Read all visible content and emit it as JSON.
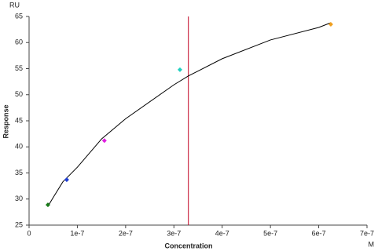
{
  "chart_data": {
    "type": "scatter",
    "x_label": "Concentration",
    "y_label": "Response",
    "x_unit": "M",
    "y_unit": "RU",
    "x": [
      3.9e-08,
      7.8e-08,
      1.56e-07,
      3.125e-07,
      6.25e-07
    ],
    "values": [
      28.9,
      33.7,
      41.2,
      54.8,
      63.5
    ],
    "colors": [
      "#1a7a1a",
      "#1f3fd6",
      "#e020e0",
      "#20d0c0",
      "#f0a020"
    ],
    "fit": {
      "color": "#000000",
      "x": [
        3.9e-08,
        5e-08,
        7e-08,
        1e-07,
        1.5e-07,
        2e-07,
        3e-07,
        3.3e-07,
        4e-07,
        5e-07,
        6e-07,
        6.25e-07
      ],
      "values": [
        28.6,
        30.3,
        33.3,
        36.1,
        41.5,
        45.4,
        51.9,
        53.6,
        56.9,
        60.5,
        62.9,
        63.8
      ]
    },
    "marker_line": {
      "x": 3.3e-07,
      "color": "#c00020"
    },
    "xlim": [
      0,
      7e-07
    ],
    "xticks": [
      0,
      {
        "value": 1e-07,
        "label": "1e-7"
      },
      {
        "value": 2e-07,
        "label": "2e-7"
      },
      {
        "value": 3e-07,
        "label": "3e-7"
      },
      {
        "value": 4e-07,
        "label": "4e-7"
      },
      {
        "value": 5e-07,
        "label": "5e-7"
      },
      {
        "value": 6e-07,
        "label": "6e-7"
      },
      {
        "value": 7e-07,
        "label": "7e-7"
      }
    ],
    "ylim": [
      25,
      65
    ],
    "yticks": [
      25,
      30,
      35,
      40,
      45,
      50,
      55,
      60,
      65
    ],
    "grid": false
  }
}
